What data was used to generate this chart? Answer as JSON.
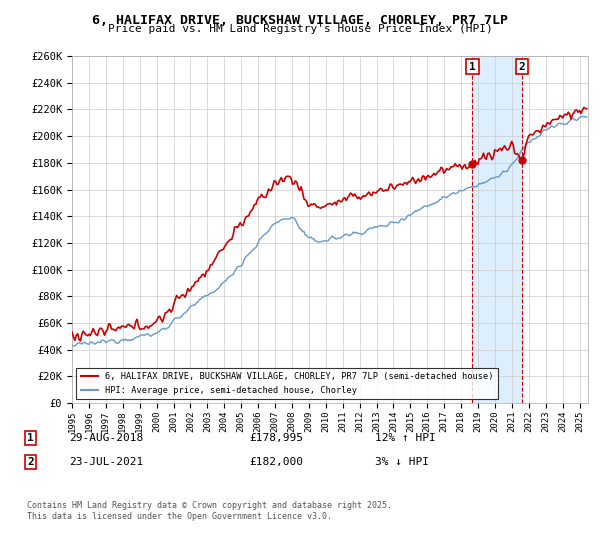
{
  "title_line1": "6, HALIFAX DRIVE, BUCKSHAW VILLAGE, CHORLEY, PR7 7LP",
  "title_line2": "Price paid vs. HM Land Registry's House Price Index (HPI)",
  "background_color": "#ffffff",
  "plot_bg_color": "#ffffff",
  "grid_color": "#cccccc",
  "red_line_color": "#cc0000",
  "blue_line_color": "#6699cc",
  "shade_color": "#ddeeff",
  "purchase1_date": "29-AUG-2018",
  "purchase1_price": 178995,
  "purchase1_label": "12% ↑ HPI",
  "purchase2_date": "23-JUL-2021",
  "purchase2_price": 182000,
  "purchase2_label": "3% ↓ HPI",
  "legend_house": "6, HALIFAX DRIVE, BUCKSHAW VILLAGE, CHORLEY, PR7 7LP (semi-detached house)",
  "legend_hpi": "HPI: Average price, semi-detached house, Chorley",
  "footer": "Contains HM Land Registry data © Crown copyright and database right 2025.\nThis data is licensed under the Open Government Licence v3.0.",
  "ylim_max": 260000,
  "ylim_min": 0,
  "x_start_year": 1995,
  "x_end_year": 2025
}
